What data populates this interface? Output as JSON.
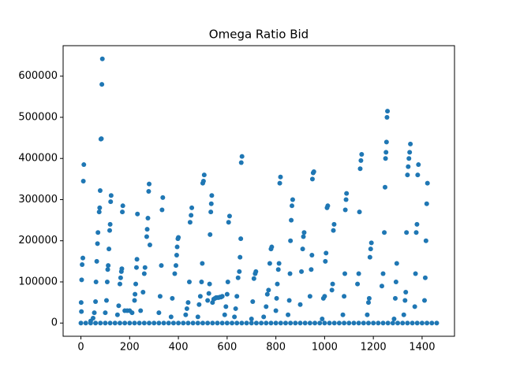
{
  "chart_data": {
    "type": "scatter",
    "title": "Omega Ratio Bid",
    "color": "#1f77b4",
    "xlim": [
      -73,
      1533
    ],
    "ylim": [
      -32100,
      674100
    ],
    "xticks": [
      0,
      200,
      400,
      600,
      800,
      1000,
      1200,
      1400
    ],
    "yticks": [
      0,
      100000,
      200000,
      300000,
      400000,
      500000,
      600000
    ],
    "x": [
      0,
      20,
      40,
      60,
      80,
      100,
      120,
      140,
      160,
      180,
      200,
      220,
      240,
      260,
      280,
      300,
      320,
      340,
      360,
      380,
      400,
      420,
      440,
      460,
      480,
      500,
      520,
      540,
      560,
      580,
      600,
      620,
      640,
      660,
      680,
      700,
      720,
      740,
      760,
      780,
      800,
      820,
      840,
      860,
      880,
      900,
      920,
      940,
      960,
      980,
      1000,
      1020,
      1040,
      1060,
      1080,
      1100,
      1120,
      1140,
      1160,
      1180,
      1200,
      1220,
      1240,
      1260,
      1280,
      1300,
      1320,
      1340,
      1360,
      1380,
      1400,
      1420,
      1440,
      1460,
      1,
      2,
      3,
      5,
      8,
      10,
      12,
      40,
      50,
      55,
      60,
      62,
      65,
      68,
      70,
      75,
      77,
      79,
      82,
      84,
      86,
      88,
      100,
      105,
      108,
      110,
      112,
      115,
      118,
      120,
      122,
      124,
      150,
      155,
      160,
      163,
      166,
      168,
      170,
      172,
      180,
      190,
      200,
      210,
      220,
      222,
      225,
      228,
      230,
      232,
      245,
      255,
      260,
      263,
      270,
      272,
      275,
      278,
      280,
      283,
      320,
      325,
      330,
      333,
      336,
      370,
      375,
      385,
      390,
      393,
      395,
      398,
      400,
      430,
      435,
      440,
      445,
      448,
      452,
      455,
      480,
      485,
      490,
      495,
      498,
      500,
      503,
      506,
      520,
      525,
      528,
      530,
      533,
      535,
      537,
      540,
      545,
      550,
      555,
      560,
      565,
      570,
      575,
      580,
      590,
      595,
      600,
      603,
      606,
      610,
      630,
      635,
      640,
      645,
      650,
      653,
      656,
      658,
      661,
      700,
      705,
      710,
      715,
      718,
      750,
      760,
      765,
      770,
      775,
      780,
      783,
      800,
      803,
      806,
      810,
      813,
      816,
      819,
      850,
      855,
      858,
      860,
      863,
      866,
      869,
      900,
      905,
      910,
      913,
      916,
      940,
      945,
      948,
      950,
      953,
      956,
      990,
      995,
      1000,
      1003,
      1006,
      1010,
      1013,
      1030,
      1033,
      1036,
      1039,
      1075,
      1080,
      1083,
      1085,
      1088,
      1090,
      1135,
      1140,
      1143,
      1146,
      1149,
      1152,
      1175,
      1180,
      1183,
      1186,
      1189,
      1192,
      1235,
      1240,
      1245,
      1248,
      1250,
      1252,
      1254,
      1256,
      1258,
      1285,
      1290,
      1293,
      1296,
      1325,
      1330,
      1333,
      1336,
      1340,
      1343,
      1346,
      1349,
      1352,
      1370,
      1373,
      1376,
      1379,
      1382,
      1385,
      1410,
      1413,
      1416,
      1419,
      1422
    ],
    "values": [
      0,
      0,
      0,
      0,
      0,
      0,
      0,
      0,
      0,
      0,
      0,
      0,
      0,
      0,
      0,
      0,
      0,
      0,
      0,
      0,
      0,
      0,
      0,
      0,
      0,
      0,
      0,
      0,
      0,
      0,
      0,
      0,
      0,
      0,
      0,
      0,
      0,
      0,
      0,
      0,
      0,
      0,
      0,
      0,
      0,
      0,
      0,
      0,
      0,
      0,
      0,
      0,
      0,
      0,
      0,
      0,
      0,
      0,
      0,
      0,
      0,
      0,
      0,
      0,
      0,
      0,
      0,
      0,
      0,
      0,
      0,
      0,
      0,
      0,
      50000,
      28000,
      105000,
      142000,
      158000,
      345000,
      385000,
      5000,
      12000,
      25000,
      52000,
      100000,
      150000,
      193000,
      220000,
      270000,
      280000,
      322000,
      447000,
      448000,
      580000,
      642000,
      25000,
      55000,
      100000,
      130000,
      140000,
      180000,
      225000,
      240000,
      295000,
      310000,
      20000,
      42000,
      95000,
      110000,
      125000,
      132000,
      270000,
      285000,
      30000,
      30000,
      30000,
      25000,
      55000,
      70000,
      95000,
      135000,
      155000,
      265000,
      30000,
      75000,
      120000,
      135000,
      210000,
      228000,
      255000,
      320000,
      338000,
      190000,
      25000,
      65000,
      140000,
      275000,
      305000,
      15000,
      60000,
      120000,
      140000,
      165000,
      185000,
      205000,
      208000,
      20000,
      35000,
      50000,
      100000,
      245000,
      262000,
      280000,
      15000,
      45000,
      65000,
      100000,
      145000,
      340000,
      345000,
      360000,
      55000,
      72000,
      95000,
      215000,
      270000,
      290000,
      310000,
      50000,
      58000,
      60000,
      62000,
      62000,
      62000,
      63000,
      63000,
      65000,
      20000,
      40000,
      70000,
      100000,
      245000,
      260000,
      15000,
      35000,
      65000,
      110000,
      125000,
      160000,
      205000,
      390000,
      405000,
      10000,
      52000,
      108000,
      120000,
      125000,
      15000,
      40000,
      70000,
      80000,
      145000,
      180000,
      185000,
      30000,
      60000,
      95000,
      130000,
      145000,
      340000,
      355000,
      20000,
      55000,
      120000,
      200000,
      250000,
      285000,
      300000,
      45000,
      125000,
      180000,
      210000,
      220000,
      65000,
      130000,
      165000,
      350000,
      365000,
      368000,
      10000,
      60000,
      65000,
      150000,
      170000,
      280000,
      285000,
      80000,
      95000,
      225000,
      240000,
      20000,
      65000,
      120000,
      275000,
      300000,
      315000,
      95000,
      120000,
      270000,
      375000,
      395000,
      410000,
      20000,
      50000,
      60000,
      160000,
      180000,
      195000,
      90000,
      120000,
      220000,
      330000,
      400000,
      415000,
      440000,
      500000,
      515000,
      10000,
      60000,
      100000,
      145000,
      20000,
      55000,
      75000,
      220000,
      360000,
      380000,
      400000,
      415000,
      435000,
      40000,
      120000,
      220000,
      240000,
      360000,
      385000,
      55000,
      110000,
      200000,
      290000,
      340000
    ]
  }
}
